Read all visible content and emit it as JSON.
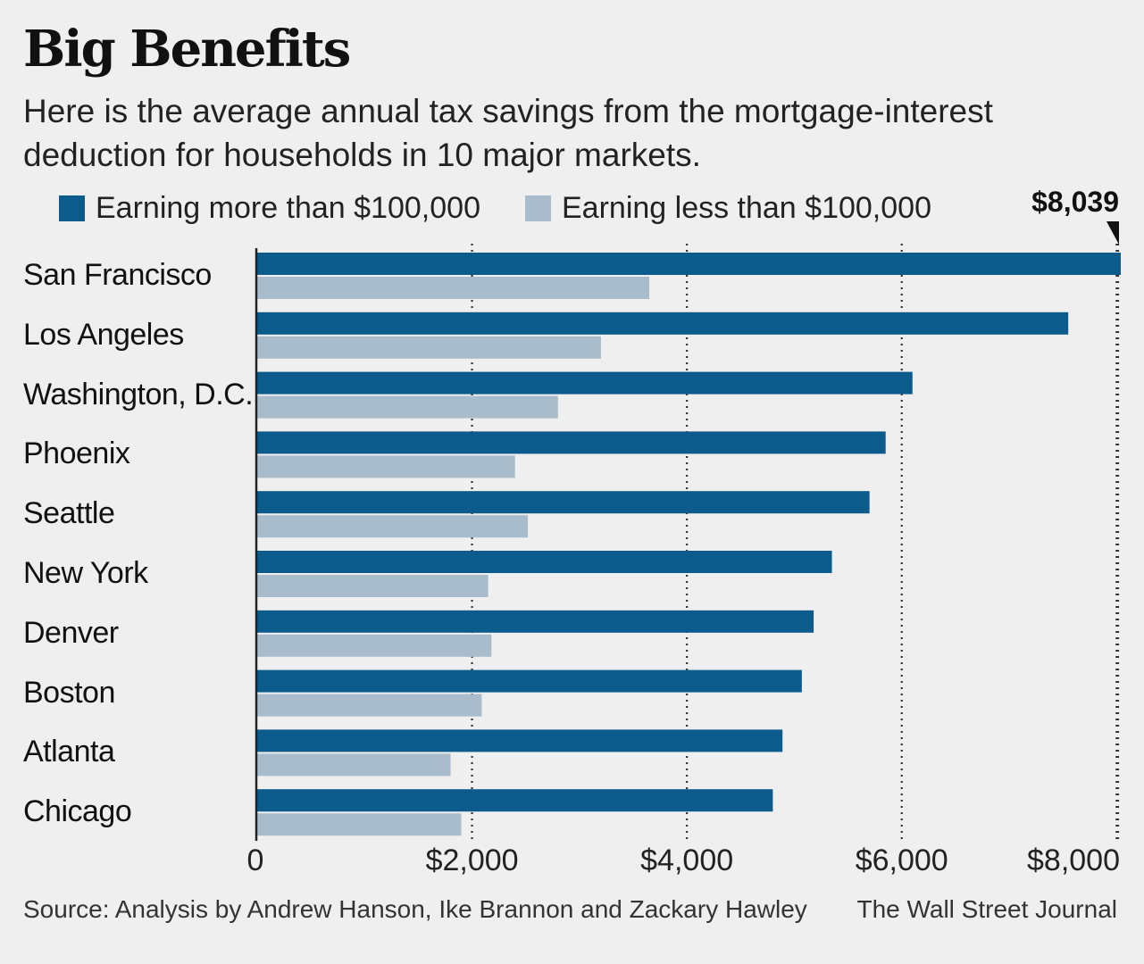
{
  "title": "Big Benefits",
  "subtitle": "Here is the average annual tax savings from the mortgage-interest deduction for households in 10 major markets.",
  "max_annotation": "$8,039",
  "source": "Source: Analysis by Andrew Hanson, Ike Brannon and Zackary Hawley",
  "credit": "The Wall Street Journal",
  "colors": {
    "more": "#0b5b8c",
    "less": "#a9bccb",
    "background": "#efefef"
  },
  "chart_data": {
    "type": "bar",
    "orientation": "horizontal",
    "categories": [
      "San Francisco",
      "Los Angeles",
      "Washington, D.C.",
      "Phoenix",
      "Seattle",
      "New York",
      "Denver",
      "Boston",
      "Atlanta",
      "Chicago"
    ],
    "series": [
      {
        "name": "Earning more than $100,000",
        "values": [
          8039,
          7550,
          6100,
          5850,
          5700,
          5350,
          5180,
          5070,
          4890,
          4800
        ]
      },
      {
        "name": "Earning less than $100,000",
        "values": [
          3650,
          3200,
          2800,
          2400,
          2520,
          2150,
          2180,
          2090,
          1800,
          1900
        ]
      }
    ],
    "xticks": [
      "0",
      "$2,000",
      "$4,000",
      "$6,000",
      "$8,000"
    ],
    "xtick_values": [
      0,
      2000,
      4000,
      6000,
      8000
    ],
    "xlim": [
      0,
      8039
    ],
    "grid": "vertical dotted",
    "legend_position": "top"
  }
}
